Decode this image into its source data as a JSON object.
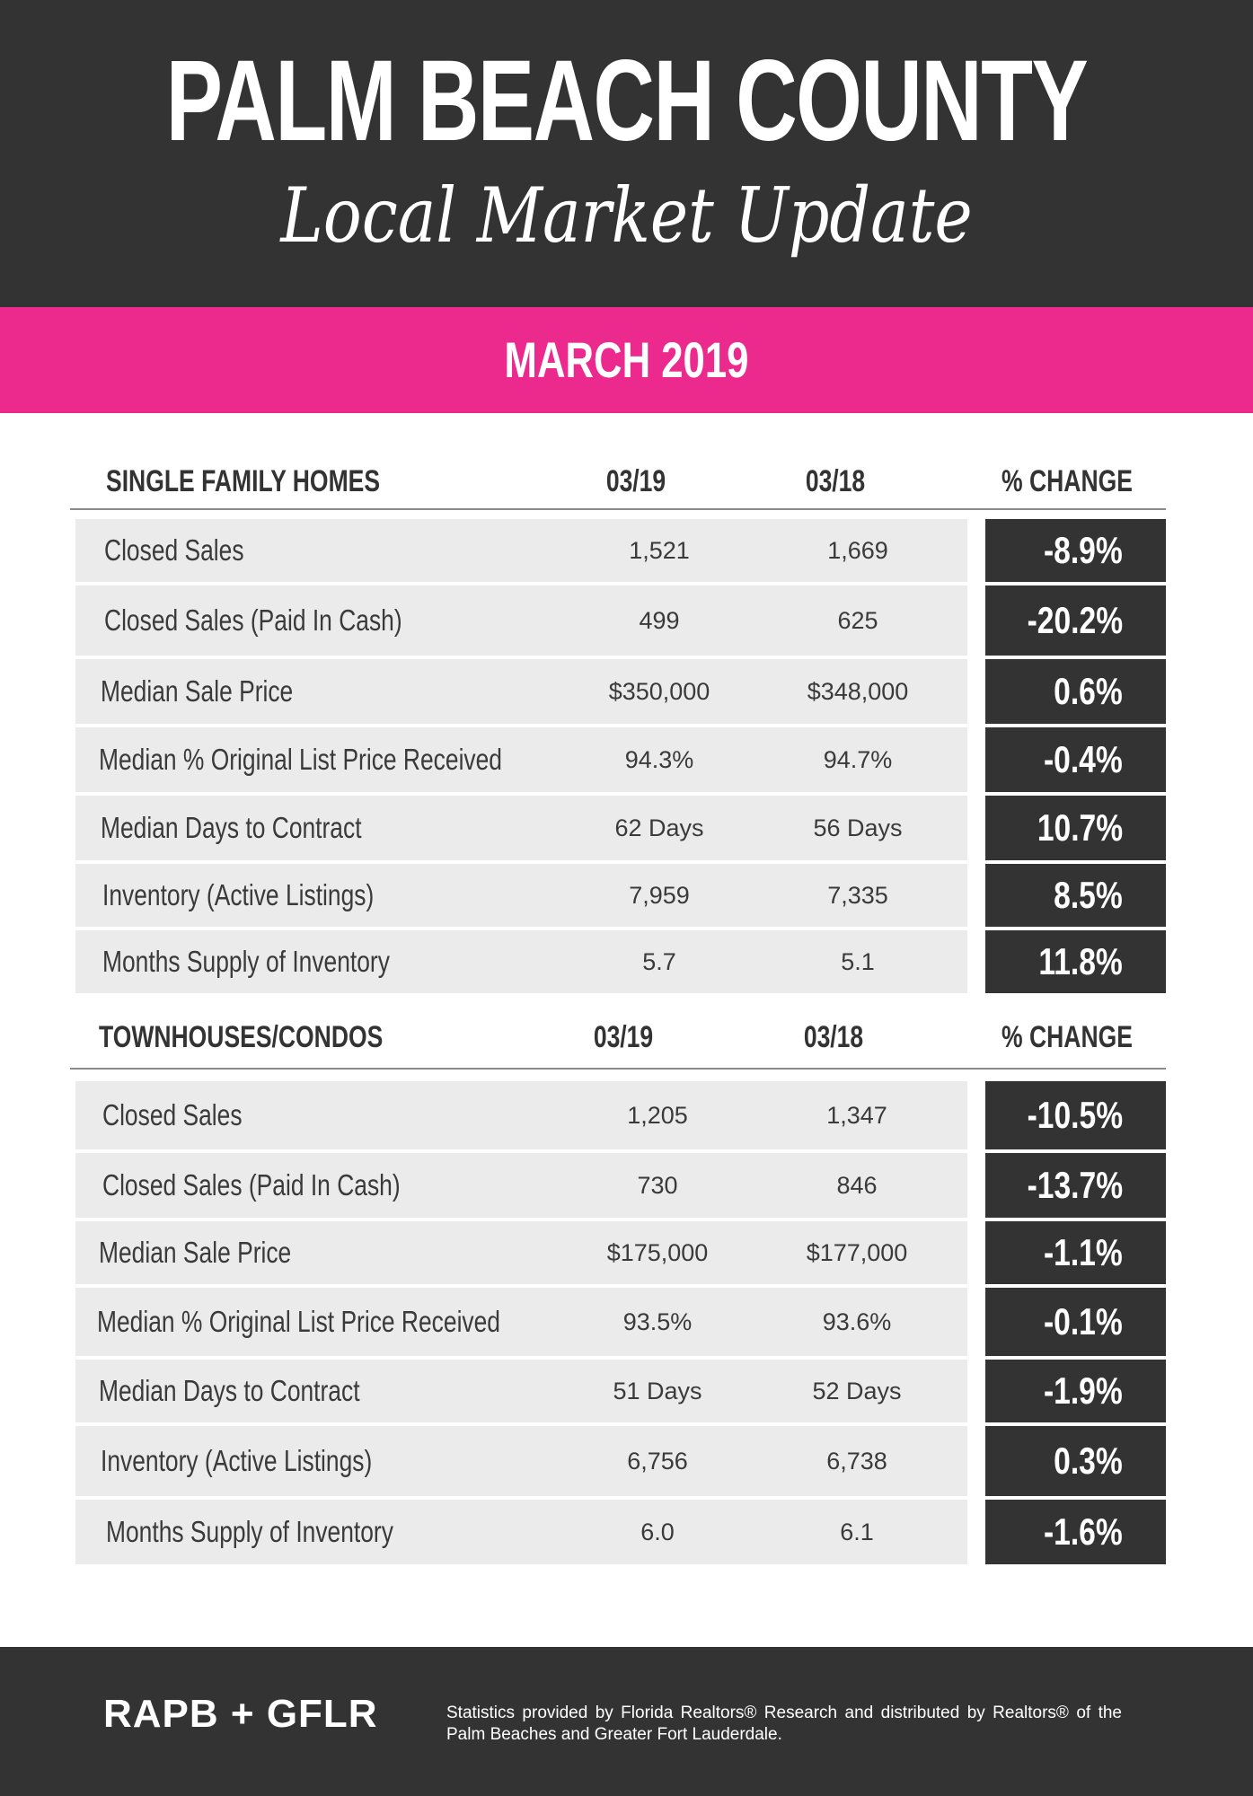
{
  "header": {
    "title": "PALM BEACH COUNTY",
    "subtitle": "Local Market Update"
  },
  "banner": {
    "period": "MARCH 2019"
  },
  "colors": {
    "dark": "#333333",
    "accent": "#ec2a8e",
    "row_bg": "#ebebeb"
  },
  "sections": [
    {
      "title": "SINGLE FAMILY HOMES",
      "col1": "03/19",
      "col2": "03/18",
      "col3": "% CHANGE",
      "rows": [
        {
          "label": "Closed Sales",
          "current": "1,521",
          "prior": "1,669",
          "change": "-8.9%"
        },
        {
          "label": "Closed Sales (Paid In Cash)",
          "current": "499",
          "prior": "625",
          "change": "-20.2%"
        },
        {
          "label": "Median Sale Price",
          "current": "$350,000",
          "prior": "$348,000",
          "change": "0.6%"
        },
        {
          "label": "Median % Original List Price Received",
          "current": "94.3%",
          "prior": "94.7%",
          "change": "-0.4%"
        },
        {
          "label": "Median Days to Contract",
          "current": "62 Days",
          "prior": "56 Days",
          "change": "10.7%"
        },
        {
          "label": "Inventory (Active Listings)",
          "current": "7,959",
          "prior": "7,335",
          "change": "8.5%"
        },
        {
          "label": "Months Supply of Inventory",
          "current": "5.7",
          "prior": "5.1",
          "change": "11.8%"
        }
      ]
    },
    {
      "title": "TOWNHOUSES/CONDOS",
      "col1": "03/19",
      "col2": "03/18",
      "col3": "% CHANGE",
      "rows": [
        {
          "label": "Closed Sales",
          "current": "1,205",
          "prior": "1,347",
          "change": "-10.5%"
        },
        {
          "label": "Closed Sales (Paid In Cash)",
          "current": "730",
          "prior": "846",
          "change": "-13.7%"
        },
        {
          "label": "Median Sale Price",
          "current": "$175,000",
          "prior": "$177,000",
          "change": "-1.1%"
        },
        {
          "label": "Median % Original List Price Received",
          "current": "93.5%",
          "prior": "93.6%",
          "change": "-0.1%"
        },
        {
          "label": "Median Days to Contract",
          "current": "51 Days",
          "prior": "52 Days",
          "change": "-1.9%"
        },
        {
          "label": "Inventory (Active Listings)",
          "current": "6,756",
          "prior": "6,738",
          "change": "0.3%"
        },
        {
          "label": "Months Supply of Inventory",
          "current": "6.0",
          "prior": "6.1",
          "change": "-1.6%"
        }
      ]
    }
  ],
  "footer": {
    "logo": "RAPB + GFLR",
    "note": "Statistics provided by Florida Realtors® Research and distributed by Realtors® of the Palm Beaches and Greater Fort Lauderdale."
  }
}
